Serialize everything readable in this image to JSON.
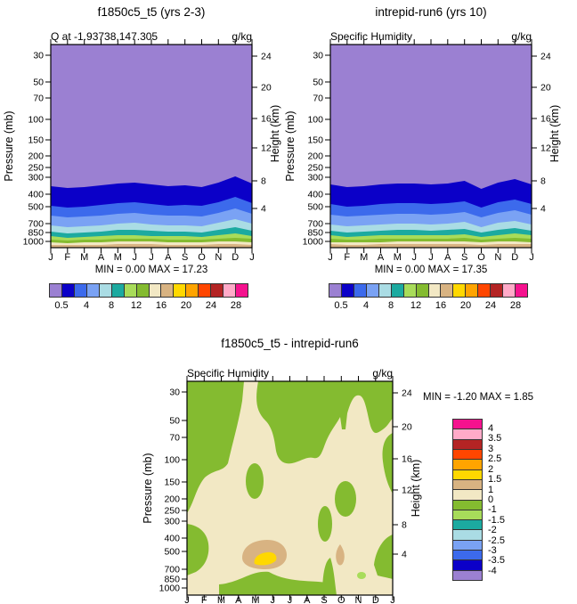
{
  "axes": {
    "months": [
      "J",
      "F",
      "M",
      "A",
      "M",
      "J",
      "J",
      "A",
      "S",
      "O",
      "N",
      "D",
      "J"
    ],
    "pressure_label": "Pressure (mb)",
    "height_label": "Height (km)",
    "pressure_ticks": [
      "30",
      "50",
      "70",
      "100",
      "150",
      "200",
      "250",
      "300",
      "400",
      "500",
      "700",
      "850",
      "1000"
    ],
    "height_ticks": [
      "24",
      "20",
      "16",
      "12",
      "8",
      "4"
    ]
  },
  "palette": {
    "levels_colors": [
      "#9b80d2",
      "#0b00c8",
      "#3c6aec",
      "#7aa2f4",
      "#aadce4",
      "#1caaa0",
      "#a8dc5a",
      "#84bb30",
      "#f2e8c4",
      "#d8b382",
      "#ffd800",
      "#ffa400",
      "#ff4600",
      "#b42424",
      "#ffaac8",
      "#f5128e"
    ],
    "diff_colors": [
      "#f5128e",
      "#ffaac8",
      "#b42424",
      "#ff4600",
      "#ffa400",
      "#ffd800",
      "#d8b382",
      "#f2e8c4",
      "#84bb30",
      "#a8dc5a",
      "#1caaa0",
      "#aadce4",
      "#7aa2f4",
      "#3c6aec",
      "#0b00c8",
      "#9b80d2"
    ]
  },
  "panels": {
    "top_left": {
      "title": "f1850c5_t5 (yrs 2-3)",
      "subtitle_left": "Q at -1.93738,147.305",
      "units": "g/kg",
      "stats": "MIN =  0.00 MAX =  17.23",
      "colorbar_labels": [
        "0.5",
        "4",
        "8",
        "12",
        "16",
        "20",
        "24",
        "28"
      ]
    },
    "top_right": {
      "title": "intrepid-run6 (yrs 10)",
      "subtitle_left": "Specific Humidity",
      "units": "g/kg",
      "stats": "MIN =  0.00 MAX =  17.35",
      "colorbar_labels": [
        "0.5",
        "4",
        "8",
        "12",
        "16",
        "20",
        "24",
        "28"
      ]
    },
    "bottom": {
      "title": "f1850c5_t5 - intrepid-run6",
      "subtitle_left": "Specific Humidity",
      "units": "g/kg",
      "stats": "MIN = -1.20 MAX =  1.85",
      "colorbar_labels": [
        "4",
        "3.5",
        "3",
        "2.5",
        "2",
        "1.5",
        "1",
        "0",
        "-1",
        "-1.5",
        "-2",
        "-2.5",
        "-3",
        "-3.5",
        "-4"
      ]
    }
  },
  "chart_data": [
    {
      "type": "filled-contour",
      "title": "f1850c5_t5 (yrs 2-3)",
      "field": "Q at -1.93738,147.305",
      "units": "g/kg",
      "x_ticks": [
        "J",
        "F",
        "M",
        "A",
        "M",
        "J",
        "J",
        "A",
        "S",
        "O",
        "N",
        "D",
        "J"
      ],
      "y_left": {
        "label": "Pressure (mb)",
        "ticks": [
          30,
          50,
          70,
          100,
          150,
          200,
          250,
          300,
          400,
          500,
          700,
          850,
          1000
        ]
      },
      "y_right": {
        "label": "Height (km)",
        "ticks": [
          24,
          20,
          16,
          12,
          8,
          4
        ]
      },
      "min": 0.0,
      "max": 17.23,
      "colorbar_tick_values": [
        0.5,
        4,
        8,
        12,
        16,
        20,
        24,
        28
      ],
      "n_color_bins": 16,
      "approx_level_pressure_mb": {
        "0.5": 340,
        "2": 480,
        "4": 590,
        "6": 710,
        "8": 830,
        "10": 905,
        "12": 950,
        "14": 995,
        "16": 1010
      },
      "structure": "quasi-horizontal moist layers, humidity increasing toward the surface; below 0.5 g/kg above ~340 mb (purple), maximum near surface"
    },
    {
      "type": "filled-contour",
      "title": "intrepid-run6 (yrs 10)",
      "field": "Specific Humidity",
      "units": "g/kg",
      "x_ticks": [
        "J",
        "F",
        "M",
        "A",
        "M",
        "J",
        "J",
        "A",
        "S",
        "O",
        "N",
        "D",
        "J"
      ],
      "y_left": {
        "label": "Pressure (mb)",
        "ticks": [
          30,
          50,
          70,
          100,
          150,
          200,
          250,
          300,
          400,
          500,
          700,
          850,
          1000
        ]
      },
      "y_right": {
        "label": "Height (km)",
        "ticks": [
          24,
          20,
          16,
          12,
          8,
          4
        ]
      },
      "min": 0.0,
      "max": 17.35,
      "colorbar_tick_values": [
        0.5,
        4,
        8,
        12,
        16,
        20,
        24,
        28
      ],
      "n_color_bins": 16,
      "approx_level_pressure_mb": {
        "0.5": 340,
        "2": 480,
        "4": 590,
        "6": 710,
        "8": 830,
        "10": 905,
        "12": 950,
        "14": 995,
        "16": 1010
      },
      "structure": "same layered structure as left panel with slightly different month-to-month undulations (dip near Sep-Oct)"
    },
    {
      "type": "filled-contour-difference",
      "title": "f1850c5_t5 - intrepid-run6",
      "field": "Specific Humidity",
      "units": "g/kg",
      "x_ticks": [
        "J",
        "F",
        "M",
        "A",
        "M",
        "J",
        "J",
        "A",
        "S",
        "O",
        "N",
        "D",
        "J"
      ],
      "y_left": {
        "label": "Pressure (mb)",
        "ticks": [
          30,
          50,
          70,
          100,
          150,
          200,
          250,
          300,
          400,
          500,
          700,
          850,
          1000
        ]
      },
      "y_right": {
        "label": "Height (km)",
        "ticks": [
          24,
          20,
          16,
          12,
          8,
          4
        ]
      },
      "min": -1.2,
      "max": 1.85,
      "colorbar_tick_values": [
        4,
        3.5,
        3,
        2.5,
        2,
        1.5,
        1,
        0,
        -1,
        -1.5,
        -2,
        -2.5,
        -3,
        -3.5,
        -4
      ],
      "n_color_bins": 16,
      "features": [
        "field mostly between -1 and +1 g/kg: green bins are -1..0, cream bins are 0..1",
        "positive maximum +1.5..2 g/kg (yellow) centered May-Jun near 700 mb",
        "secondary +1..1.5 g/kg (tan) around May-Jun 500-850 mb and near Oct ~700 mb",
        "green (-1..0) dominates upper levels and patches at lower levels (Jan-Feb, below Sep, near-surface strip Mar-Sep)"
      ]
    }
  ]
}
